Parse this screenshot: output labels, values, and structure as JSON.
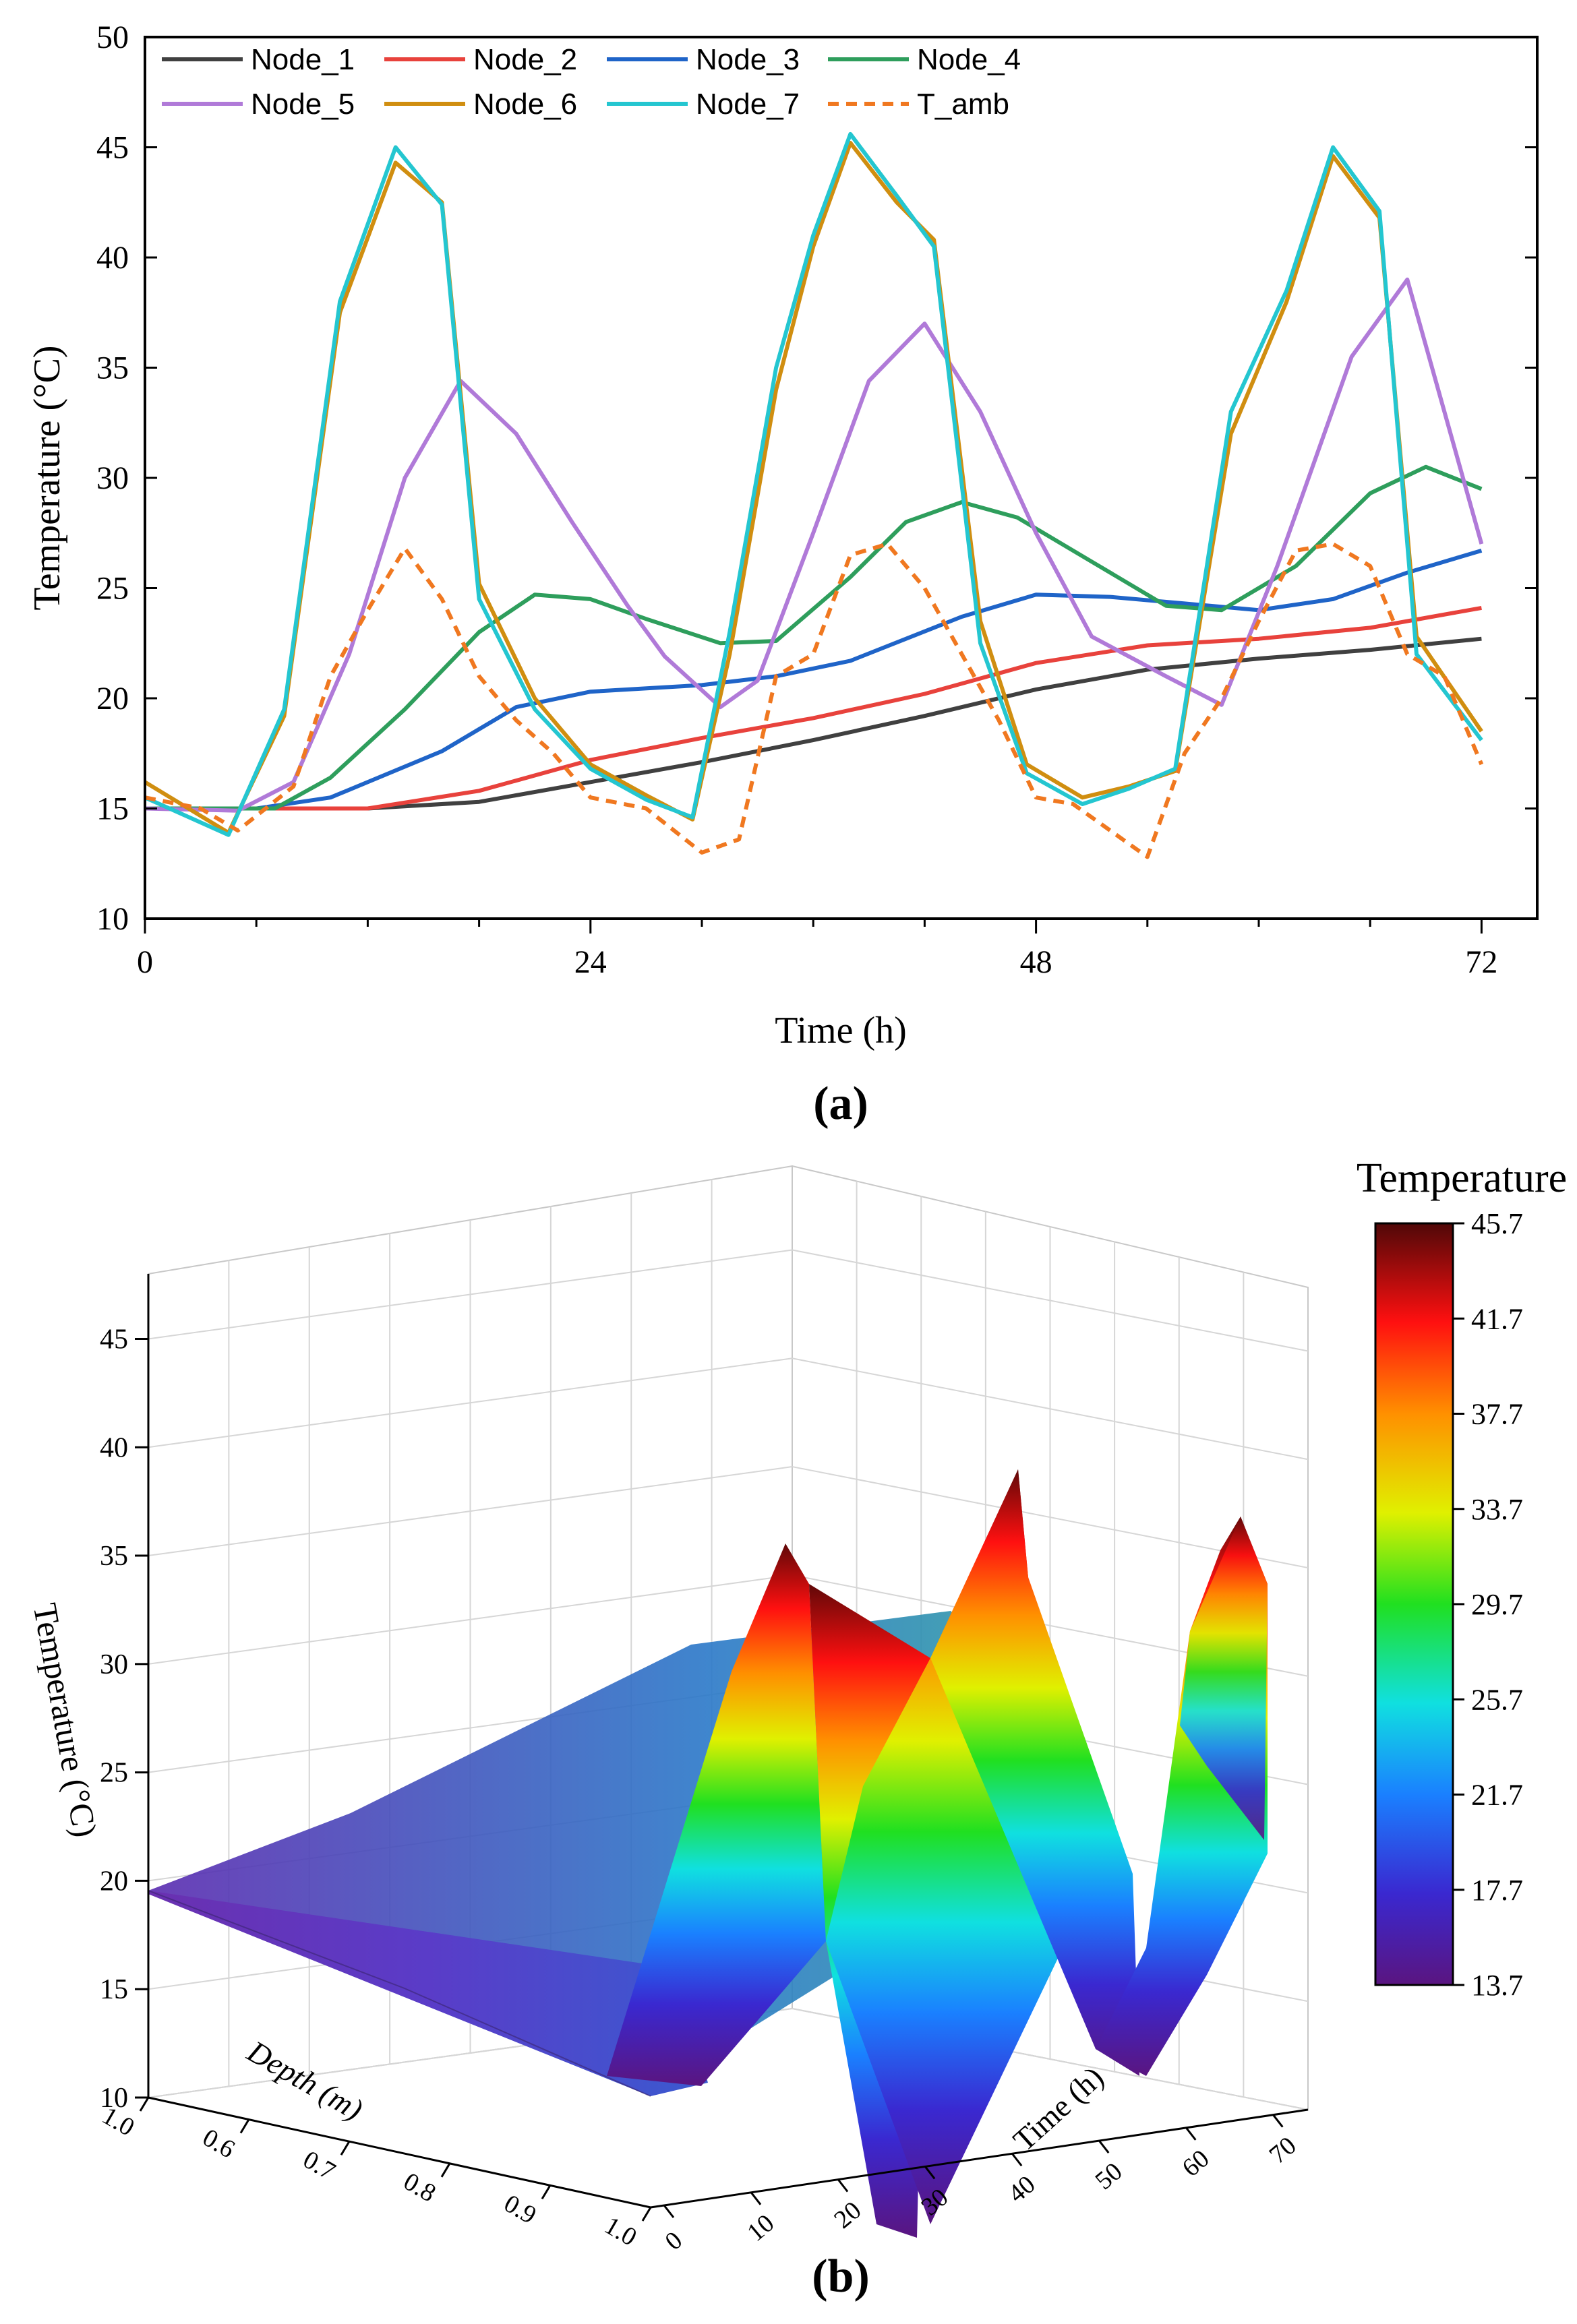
{
  "chart_data": [
    {
      "type": "line",
      "panel_label": "(a)",
      "title": "",
      "xlabel": "Time (h)",
      "ylabel": "Temperature (°C)",
      "xlim": [
        0,
        75
      ],
      "ylim": [
        10,
        50
      ],
      "xticks": [
        "0",
        "24",
        "48",
        "72"
      ],
      "xtick_values": [
        0,
        24,
        48,
        72
      ],
      "yticks": [
        "10",
        "15",
        "20",
        "25",
        "30",
        "35",
        "40",
        "45",
        "50"
      ],
      "ytick_values": [
        10,
        15,
        20,
        25,
        30,
        35,
        40,
        45,
        50
      ],
      "legend_position": "top-left",
      "series": [
        {
          "name": "Node_1",
          "color": "#404040",
          "dash": false,
          "x": [
            0,
            6,
            12,
            18,
            24,
            30,
            36,
            42,
            48,
            54,
            60,
            66,
            72
          ],
          "y": [
            15,
            15,
            15,
            15.3,
            16.2,
            17.1,
            18.1,
            19.2,
            20.4,
            21.3,
            21.8,
            22.2,
            22.7
          ]
        },
        {
          "name": "Node_2",
          "color": "#e8423c",
          "dash": false,
          "x": [
            0,
            6,
            12,
            18,
            24,
            30,
            36,
            42,
            48,
            54,
            60,
            66,
            72
          ],
          "y": [
            15,
            15,
            15,
            15.8,
            17.2,
            18.2,
            19.1,
            20.2,
            21.6,
            22.4,
            22.7,
            23.2,
            24.1
          ]
        },
        {
          "name": "Node_3",
          "color": "#1f64c8",
          "dash": false,
          "x": [
            0,
            6,
            10,
            16,
            20,
            24,
            30,
            34,
            38,
            44,
            48,
            52,
            56,
            60,
            64,
            68,
            72
          ],
          "y": [
            15,
            15,
            15.5,
            17.6,
            19.6,
            20.3,
            20.6,
            21.0,
            21.7,
            23.7,
            24.7,
            24.6,
            24.3,
            24.0,
            24.5,
            25.7,
            26.7
          ]
        },
        {
          "name": "Node_4",
          "color": "#2e9e5c",
          "dash": false,
          "x": [
            0,
            4,
            7,
            10,
            14,
            18,
            21,
            24,
            27,
            31,
            34,
            38,
            41,
            44,
            47,
            51,
            55,
            58,
            62,
            66,
            69,
            72
          ],
          "y": [
            15,
            15,
            15,
            16.4,
            19.5,
            23.0,
            24.7,
            24.5,
            23.6,
            22.5,
            22.6,
            25.5,
            28.0,
            28.9,
            28.2,
            26.2,
            24.2,
            24.0,
            26.0,
            29.3,
            30.5,
            29.5
          ]
        },
        {
          "name": "Node_5",
          "color": "#b07ad8",
          "dash": false,
          "x": [
            0,
            5,
            8,
            11,
            14,
            17,
            20,
            23,
            26,
            28,
            31,
            33,
            36,
            39,
            42,
            45,
            48,
            51,
            55,
            58,
            61,
            65,
            68,
            72
          ],
          "y": [
            15,
            14.9,
            16.2,
            22,
            30,
            34.4,
            32,
            28,
            24.2,
            21.9,
            19.6,
            20.8,
            27.5,
            34.4,
            37.0,
            33.0,
            27.5,
            22.8,
            21.0,
            19.7,
            26.0,
            35.5,
            39.0,
            27.0
          ]
        },
        {
          "name": "Node_6",
          "color": "#d08e10",
          "dash": false,
          "x": [
            0,
            4.5,
            7.5,
            10.5,
            13.5,
            16,
            18,
            21,
            24,
            27,
            29.5,
            31.5,
            34,
            36,
            38,
            40.5,
            42.5,
            45,
            47.5,
            50.5,
            53,
            55.5,
            58.5,
            61.5,
            64,
            66.5,
            68.5,
            72
          ],
          "y": [
            16.2,
            13.9,
            19.2,
            37.5,
            44.3,
            42.5,
            25.2,
            20.0,
            17.0,
            15.6,
            14.5,
            22.0,
            34.0,
            40.5,
            45.2,
            42.5,
            40.8,
            23.5,
            17.0,
            15.5,
            16.0,
            16.7,
            32.0,
            38.0,
            44.6,
            41.8,
            22.8,
            18.5
          ]
        },
        {
          "name": "Node_7",
          "color": "#24c6d0",
          "dash": false,
          "x": [
            0,
            4.5,
            7.5,
            10.5,
            13.5,
            16,
            18,
            21,
            24,
            27,
            29.5,
            31.5,
            34,
            36,
            38,
            40.5,
            42.5,
            45,
            47.5,
            50.5,
            53,
            55.5,
            58.5,
            61.5,
            64,
            66.5,
            68.5,
            72
          ],
          "y": [
            15.5,
            13.8,
            19.5,
            38.0,
            45.0,
            42.4,
            24.5,
            19.5,
            16.8,
            15.4,
            14.6,
            23.0,
            35.0,
            41.0,
            45.6,
            42.8,
            40.5,
            22.5,
            16.6,
            15.2,
            15.9,
            16.8,
            33.0,
            38.5,
            45.0,
            42.1,
            22.0,
            18.1
          ]
        },
        {
          "name": "T_amb",
          "color": "#f07820",
          "dash": true,
          "x": [
            0,
            3,
            5,
            8,
            10,
            12,
            14,
            16,
            18,
            20,
            22,
            24,
            27,
            30,
            32,
            34,
            36,
            38,
            40,
            42,
            44,
            46,
            48,
            50,
            52,
            54,
            56,
            58,
            60,
            62,
            64,
            66,
            68,
            70,
            72
          ],
          "y": [
            15.5,
            15.0,
            14.0,
            16.0,
            21.0,
            24.0,
            26.8,
            24.5,
            21.0,
            19.0,
            17.5,
            15.5,
            15.0,
            13.0,
            13.6,
            21.0,
            22.0,
            26.5,
            27.0,
            25.0,
            22.0,
            19.0,
            15.5,
            15.2,
            14.0,
            12.8,
            17.5,
            20.0,
            23.5,
            26.7,
            27.0,
            26.0,
            22.0,
            21.0,
            17.0
          ]
        }
      ]
    },
    {
      "type": "surface3d",
      "panel_label": "(b)",
      "title": "",
      "xlabel": "Depth (m)",
      "ylabel": "Time (h)",
      "zlabel": "Temperature (°C)",
      "xticks": [
        "1.0",
        "0.9",
        "0.8",
        "0.7",
        "0.6",
        "1.0"
      ],
      "yticks": [
        "0",
        "10",
        "20",
        "30",
        "40",
        "50",
        "60",
        "70"
      ],
      "zticks": [
        "10",
        "15",
        "20",
        "25",
        "30",
        "35",
        "40",
        "45"
      ],
      "colorbar": {
        "title": "Temperature",
        "ticks": [
          "45.7",
          "41.7",
          "37.7",
          "33.7",
          "29.7",
          "25.7",
          "21.7",
          "17.7",
          "13.7"
        ],
        "min": 13.7,
        "max": 45.7
      },
      "peaks": [
        {
          "time_h": 13.5,
          "temperature": 45.0
        },
        {
          "time_h": 38,
          "temperature": 45.6
        },
        {
          "time_h": 64,
          "temperature": 45.0
        }
      ]
    }
  ]
}
